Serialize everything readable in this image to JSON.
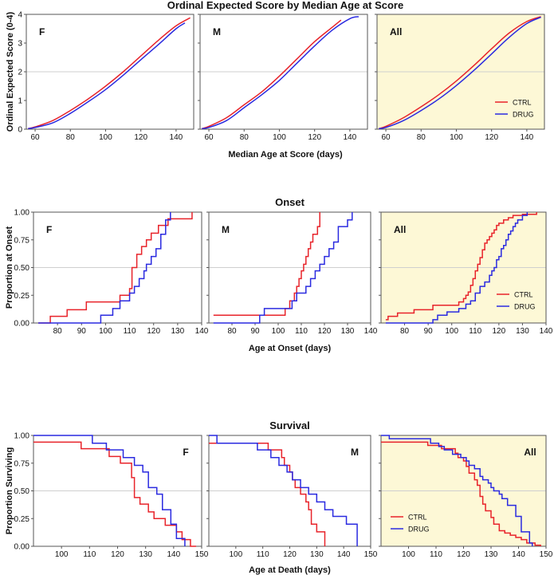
{
  "colors": {
    "ctrl": "#e8232a",
    "drug": "#2a2ae0",
    "frame": "#555555",
    "grid": "#cfcfcf",
    "all_bg": "#fdf8d6",
    "bg": "#ffffff"
  },
  "chart_data": [
    {
      "type": "line",
      "title": "Ordinal Expected Score by Median Age at Score",
      "xlabel": "Median Age at Score (days)",
      "ylabel": "Ordinal Expected Score (0-4)",
      "xlim": [
        55,
        150
      ],
      "ylim": [
        0,
        4
      ],
      "xticks": [
        60,
        80,
        100,
        120,
        140
      ],
      "yticks": [
        0,
        1,
        2,
        3,
        4
      ],
      "ref_line": 2,
      "panels": [
        {
          "label": "F",
          "legend": false,
          "series": [
            {
              "name": "CTRL",
              "x": [
                56,
                60,
                70,
                80,
                90,
                100,
                110,
                120,
                130,
                140,
                148
              ],
              "y": [
                0.02,
                0.08,
                0.3,
                0.65,
                1.05,
                1.5,
                2.0,
                2.55,
                3.1,
                3.6,
                3.88
              ]
            },
            {
              "name": "DRUG",
              "x": [
                56,
                60,
                70,
                80,
                90,
                100,
                110,
                120,
                130,
                140,
                145
              ],
              "y": [
                0.02,
                0.06,
                0.22,
                0.55,
                0.95,
                1.38,
                1.88,
                2.42,
                2.95,
                3.5,
                3.7
              ]
            }
          ]
        },
        {
          "label": "M",
          "legend": false,
          "series": [
            {
              "name": "CTRL",
              "x": [
                56,
                60,
                70,
                80,
                90,
                100,
                110,
                120,
                130,
                135
              ],
              "y": [
                0.02,
                0.1,
                0.4,
                0.85,
                1.3,
                1.85,
                2.45,
                3.05,
                3.55,
                3.8
              ]
            },
            {
              "name": "DRUG",
              "x": [
                56,
                60,
                70,
                80,
                90,
                100,
                110,
                120,
                130,
                140,
                145
              ],
              "y": [
                0.02,
                0.06,
                0.3,
                0.75,
                1.2,
                1.7,
                2.3,
                2.9,
                3.45,
                3.85,
                3.92
              ]
            }
          ]
        },
        {
          "label": "All",
          "legend": true,
          "series": [
            {
              "name": "CTRL",
              "x": [
                56,
                60,
                70,
                80,
                90,
                100,
                110,
                120,
                130,
                140,
                148
              ],
              "y": [
                0.02,
                0.1,
                0.4,
                0.78,
                1.2,
                1.68,
                2.22,
                2.8,
                3.35,
                3.75,
                3.92
              ]
            },
            {
              "name": "DRUG",
              "x": [
                56,
                60,
                70,
                80,
                90,
                100,
                110,
                120,
                130,
                140,
                148
              ],
              "y": [
                0.02,
                0.06,
                0.3,
                0.65,
                1.05,
                1.52,
                2.05,
                2.62,
                3.2,
                3.68,
                3.9
              ]
            }
          ]
        }
      ]
    },
    {
      "type": "line",
      "title": "Onset",
      "xlabel": "Age at Onset (days)",
      "ylabel": "Proportion at Onset",
      "xlim": [
        70,
        140
      ],
      "ylim": [
        0,
        1
      ],
      "xticks": [
        80,
        90,
        100,
        110,
        120,
        130,
        140
      ],
      "yticks": [
        0.0,
        0.25,
        0.5,
        0.75,
        1.0
      ],
      "ytick_labels": [
        "0.00",
        "0.25",
        "0.50",
        "0.75",
        "1.00"
      ],
      "ref_line": 0.5,
      "panels": [
        {
          "label": "F",
          "legend": false,
          "series": [
            {
              "name": "CTRL",
              "x": [
                72,
                77,
                84,
                92,
                106,
                110,
                111,
                113,
                115,
                117,
                119,
                122,
                124,
                126,
                130,
                136
              ],
              "y": [
                0,
                0.06,
                0.12,
                0.19,
                0.25,
                0.31,
                0.5,
                0.62,
                0.69,
                0.75,
                0.81,
                0.88,
                0.88,
                0.94,
                0.94,
                1.0
              ]
            },
            {
              "name": "DRUG",
              "x": [
                72,
                98,
                103,
                106,
                110,
                112,
                114,
                116,
                117,
                119,
                121,
                123,
                125,
                127
              ],
              "y": [
                0,
                0.07,
                0.13,
                0.2,
                0.27,
                0.33,
                0.4,
                0.47,
                0.53,
                0.6,
                0.67,
                0.8,
                0.93,
                1.0
              ]
            }
          ]
        },
        {
          "label": "M",
          "legend": false,
          "series": [
            {
              "name": "CTRL",
              "x": [
                72,
                103,
                105,
                107,
                108,
                109,
                110,
                111,
                112,
                113,
                114,
                115,
                117,
                118
              ],
              "y": [
                0.07,
                0.13,
                0.2,
                0.27,
                0.33,
                0.4,
                0.47,
                0.53,
                0.6,
                0.67,
                0.73,
                0.8,
                0.87,
                1.0
              ]
            },
            {
              "name": "DRUG",
              "x": [
                72,
                92,
                94,
                106,
                108,
                112,
                114,
                116,
                118,
                120,
                122,
                124,
                126,
                130,
                132
              ],
              "y": [
                0,
                0.07,
                0.13,
                0.2,
                0.27,
                0.33,
                0.4,
                0.47,
                0.53,
                0.6,
                0.67,
                0.73,
                0.87,
                0.93,
                1.0
              ]
            }
          ]
        },
        {
          "label": "All",
          "legend": true,
          "series": [
            {
              "name": "CTRL",
              "x": [
                72,
                73,
                77,
                84,
                92,
                103,
                105,
                106,
                107,
                108,
                109,
                110,
                111,
                112,
                113,
                114,
                115,
                116,
                117,
                118,
                119,
                120,
                122,
                124,
                126,
                130,
                136
              ],
              "y": [
                0.03,
                0.06,
                0.09,
                0.12,
                0.16,
                0.19,
                0.22,
                0.25,
                0.28,
                0.34,
                0.4,
                0.47,
                0.53,
                0.59,
                0.66,
                0.72,
                0.75,
                0.78,
                0.81,
                0.84,
                0.88,
                0.9,
                0.93,
                0.95,
                0.97,
                0.98,
                1.0
              ]
            },
            {
              "name": "DRUG",
              "x": [
                72,
                92,
                94,
                98,
                103,
                106,
                108,
                110,
                112,
                114,
                116,
                117,
                118,
                119,
                120,
                121,
                122,
                123,
                124,
                125,
                126,
                127,
                128,
                130,
                132
              ],
              "y": [
                0,
                0.03,
                0.07,
                0.1,
                0.13,
                0.17,
                0.2,
                0.27,
                0.33,
                0.37,
                0.43,
                0.47,
                0.5,
                0.57,
                0.6,
                0.67,
                0.7,
                0.75,
                0.8,
                0.83,
                0.87,
                0.9,
                0.93,
                0.97,
                1.0
              ]
            }
          ]
        }
      ]
    },
    {
      "type": "line",
      "title": "Survival",
      "xlabel": "Age at Death (days)",
      "ylabel": "Proportion Surviving",
      "xlim": [
        90,
        150
      ],
      "ylim": [
        0,
        1
      ],
      "xticks": [
        100,
        110,
        120,
        130,
        140,
        150
      ],
      "yticks": [
        0.0,
        0.25,
        0.5,
        0.75,
        1.0
      ],
      "ytick_labels": [
        "0.00",
        "0.25",
        "0.50",
        "0.75",
        "1.00"
      ],
      "ref_line": 0.5,
      "panels": [
        {
          "label": "F",
          "legend": false,
          "series": [
            {
              "name": "CTRL",
              "x": [
                90,
                107,
                117,
                121,
                125,
                126,
                128,
                131,
                133,
                135,
                137,
                139,
                141,
                143,
                146,
                148
              ],
              "y": [
                0.94,
                0.88,
                0.81,
                0.75,
                0.62,
                0.44,
                0.38,
                0.31,
                0.25,
                0.25,
                0.19,
                0.19,
                0.13,
                0.06,
                0.0,
                0.0
              ]
            },
            {
              "name": "DRUG",
              "x": [
                90,
                108,
                111,
                116,
                122,
                126,
                129,
                131,
                134,
                136,
                139,
                141,
                144
              ],
              "y": [
                1.0,
                1.0,
                0.93,
                0.87,
                0.8,
                0.73,
                0.67,
                0.53,
                0.47,
                0.33,
                0.2,
                0.07,
                0.0
              ]
            }
          ]
        },
        {
          "label": "M",
          "legend": false,
          "series": [
            {
              "name": "CTRL",
              "x": [
                90,
                104,
                112,
                117,
                118,
                120,
                121,
                122,
                124,
                126,
                127,
                128,
                130,
                133
              ],
              "y": [
                0.93,
                0.93,
                0.87,
                0.8,
                0.73,
                0.67,
                0.6,
                0.53,
                0.47,
                0.4,
                0.33,
                0.2,
                0.13,
                0.0
              ]
            },
            {
              "name": "DRUG",
              "x": [
                90,
                93,
                108,
                113,
                116,
                119,
                121,
                124,
                127,
                130,
                133,
                136,
                141,
                145
              ],
              "y": [
                1.0,
                0.93,
                0.87,
                0.8,
                0.73,
                0.67,
                0.6,
                0.53,
                0.47,
                0.4,
                0.33,
                0.27,
                0.2,
                0.0
              ]
            }
          ]
        },
        {
          "label": "All",
          "legend": true,
          "series": [
            {
              "name": "CTRL",
              "x": [
                90,
                104,
                107,
                112,
                117,
                118,
                120,
                121,
                122,
                124,
                125,
                126,
                127,
                128,
                130,
                131,
                133,
                135,
                137,
                139,
                141,
                143,
                146,
                148
              ],
              "y": [
                0.94,
                0.94,
                0.91,
                0.88,
                0.84,
                0.8,
                0.77,
                0.72,
                0.66,
                0.6,
                0.55,
                0.45,
                0.38,
                0.32,
                0.26,
                0.2,
                0.14,
                0.12,
                0.1,
                0.08,
                0.06,
                0.03,
                0.01,
                0.0
              ]
            },
            {
              "name": "DRUG",
              "x": [
                90,
                93,
                108,
                111,
                113,
                116,
                119,
                121,
                122,
                124,
                126,
                127,
                129,
                130,
                131,
                133,
                134,
                136,
                139,
                141,
                144,
                145
              ],
              "y": [
                1.0,
                0.97,
                0.93,
                0.9,
                0.87,
                0.83,
                0.8,
                0.77,
                0.73,
                0.7,
                0.63,
                0.6,
                0.57,
                0.53,
                0.5,
                0.47,
                0.43,
                0.37,
                0.27,
                0.13,
                0.03,
                0.0
              ]
            }
          ]
        }
      ]
    }
  ]
}
